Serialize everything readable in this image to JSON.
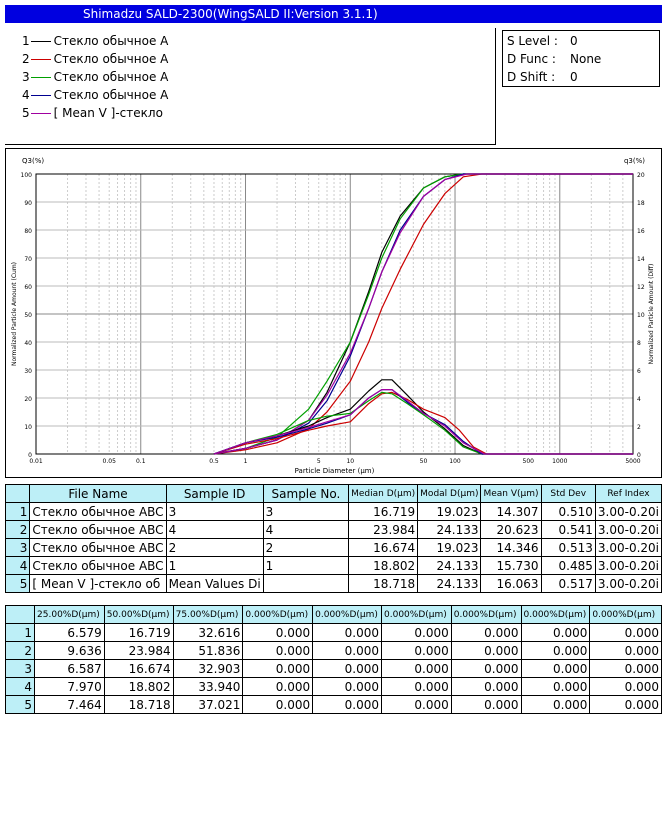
{
  "window": {
    "title": "Shimadzu SALD-2300(WingSALD II:Version 3.1.1)"
  },
  "legend": [
    {
      "num": "1",
      "label": "Стекло обычное А",
      "color": "#000000"
    },
    {
      "num": "2",
      "label": "Стекло обычное А",
      "color": "#cc0000"
    },
    {
      "num": "3",
      "label": "Стекло обычное А",
      "color": "#00a000"
    },
    {
      "num": "4",
      "label": "Стекло обычное А",
      "color": "#000090"
    },
    {
      "num": "5",
      "label": "[ Mean V ]-стекло",
      "color": "#a000a0"
    }
  ],
  "params": {
    "s_level_label": "S Level :",
    "s_level": "0",
    "d_func_label": "D Func :",
    "d_func": "None",
    "d_shift_label": "D Shift :",
    "d_shift": "0"
  },
  "chart_data": {
    "type": "line",
    "xlabel": "Particle Diameter (µm)",
    "ylabel_left": "Normalized Particle Amount (Cum)",
    "ylabel_right": "Normalized Particle Amount (Diff)",
    "y_left_title": "Q3(%)",
    "y_right_title": "q3(%)",
    "xscale": "log",
    "xlim": [
      0.01,
      5000
    ],
    "ylim_left": [
      0,
      100
    ],
    "ylim_right": [
      0,
      20
    ],
    "x_ticks": [
      "0.01",
      "0.05",
      "0.1",
      "0.5",
      "1",
      "5",
      "10",
      "50",
      "100",
      "500",
      "1000",
      "5000"
    ],
    "y_left_ticks": [
      "0",
      "10",
      "20",
      "30",
      "40",
      "50",
      "60",
      "70",
      "80",
      "90",
      "100"
    ],
    "y_right_ticks": [
      "0",
      "2",
      "4",
      "6",
      "8",
      "10",
      "12",
      "14",
      "16",
      "18",
      "20"
    ],
    "grid": true,
    "cumulative": [
      {
        "name": "1",
        "color": "#000000",
        "points": [
          [
            0.5,
            0
          ],
          [
            1,
            2
          ],
          [
            2,
            5
          ],
          [
            4,
            12
          ],
          [
            6,
            22
          ],
          [
            10,
            40
          ],
          [
            15,
            58
          ],
          [
            20,
            72
          ],
          [
            30,
            85
          ],
          [
            50,
            95
          ],
          [
            80,
            99
          ],
          [
            120,
            100
          ],
          [
            5000,
            100
          ]
        ]
      },
      {
        "name": "2",
        "color": "#cc0000",
        "points": [
          [
            0.5,
            0
          ],
          [
            1,
            1.5
          ],
          [
            2,
            4
          ],
          [
            4,
            9
          ],
          [
            6,
            15
          ],
          [
            10,
            26
          ],
          [
            15,
            40
          ],
          [
            20,
            52
          ],
          [
            30,
            66
          ],
          [
            50,
            82
          ],
          [
            80,
            93
          ],
          [
            120,
            99
          ],
          [
            180,
            100
          ],
          [
            5000,
            100
          ]
        ]
      },
      {
        "name": "3",
        "color": "#00a000",
        "points": [
          [
            0.5,
            0
          ],
          [
            1,
            2
          ],
          [
            2,
            6
          ],
          [
            4,
            16
          ],
          [
            6,
            26
          ],
          [
            10,
            40
          ],
          [
            15,
            57
          ],
          [
            20,
            70
          ],
          [
            30,
            84
          ],
          [
            50,
            95
          ],
          [
            80,
            99
          ],
          [
            120,
            100
          ],
          [
            5000,
            100
          ]
        ]
      },
      {
        "name": "4",
        "color": "#000090",
        "points": [
          [
            0.5,
            0
          ],
          [
            1,
            2
          ],
          [
            2,
            5
          ],
          [
            4,
            11
          ],
          [
            6,
            19
          ],
          [
            10,
            35
          ],
          [
            15,
            52
          ],
          [
            20,
            65
          ],
          [
            30,
            80
          ],
          [
            50,
            92
          ],
          [
            80,
            98
          ],
          [
            120,
            100
          ],
          [
            5000,
            100
          ]
        ]
      },
      {
        "name": "5",
        "color": "#a000a0",
        "points": [
          [
            0.5,
            0
          ],
          [
            1,
            2
          ],
          [
            2,
            5
          ],
          [
            4,
            12
          ],
          [
            6,
            21
          ],
          [
            10,
            36
          ],
          [
            15,
            52
          ],
          [
            20,
            65
          ],
          [
            30,
            79
          ],
          [
            50,
            92
          ],
          [
            80,
            98
          ],
          [
            130,
            100
          ],
          [
            5000,
            100
          ]
        ]
      }
    ],
    "differential": [
      {
        "name": "1",
        "color": "#000000",
        "points": [
          [
            0.5,
            0
          ],
          [
            1,
            0.8
          ],
          [
            2,
            1.3
          ],
          [
            4,
            2
          ],
          [
            6,
            2.6
          ],
          [
            10,
            3.2
          ],
          [
            15,
            4.5
          ],
          [
            20,
            5.3
          ],
          [
            25,
            5.3
          ],
          [
            35,
            4.2
          ],
          [
            50,
            3
          ],
          [
            80,
            1.8
          ],
          [
            120,
            0.6
          ],
          [
            180,
            0
          ],
          [
            5000,
            0
          ]
        ]
      },
      {
        "name": "2",
        "color": "#cc0000",
        "points": [
          [
            0.5,
            0
          ],
          [
            1,
            0.7
          ],
          [
            2,
            1.1
          ],
          [
            4,
            1.7
          ],
          [
            6,
            2
          ],
          [
            10,
            2.3
          ],
          [
            15,
            3.6
          ],
          [
            20,
            4.3
          ],
          [
            25,
            4.4
          ],
          [
            35,
            3.9
          ],
          [
            50,
            3.2
          ],
          [
            80,
            2.6
          ],
          [
            110,
            1.7
          ],
          [
            150,
            0.5
          ],
          [
            200,
            0
          ],
          [
            5000,
            0
          ]
        ]
      },
      {
        "name": "3",
        "color": "#00a000",
        "points": [
          [
            0.5,
            0
          ],
          [
            1,
            0.8
          ],
          [
            2,
            1.4
          ],
          [
            4,
            2.4
          ],
          [
            6,
            2.7
          ],
          [
            10,
            2.9
          ],
          [
            15,
            3.8
          ],
          [
            20,
            4.4
          ],
          [
            25,
            4.3
          ],
          [
            35,
            3.6
          ],
          [
            50,
            2.8
          ],
          [
            80,
            1.7
          ],
          [
            120,
            0.5
          ],
          [
            180,
            0
          ],
          [
            5000,
            0
          ]
        ]
      },
      {
        "name": "4",
        "color": "#000090",
        "points": [
          [
            0.5,
            0
          ],
          [
            1,
            0.8
          ],
          [
            2,
            1.2
          ],
          [
            4,
            1.8
          ],
          [
            6,
            2.2
          ],
          [
            10,
            2.8
          ],
          [
            15,
            4
          ],
          [
            20,
            4.6
          ],
          [
            25,
            4.6
          ],
          [
            35,
            3.7
          ],
          [
            50,
            2.9
          ],
          [
            80,
            2.1
          ],
          [
            120,
            0.9
          ],
          [
            180,
            0
          ],
          [
            5000,
            0
          ]
        ]
      },
      {
        "name": "5",
        "color": "#a000a0",
        "points": [
          [
            0.5,
            0
          ],
          [
            1,
            0.8
          ],
          [
            2,
            1.3
          ],
          [
            4,
            1.9
          ],
          [
            6,
            2.3
          ],
          [
            10,
            2.8
          ],
          [
            15,
            4
          ],
          [
            20,
            4.6
          ],
          [
            25,
            4.6
          ],
          [
            35,
            3.8
          ],
          [
            50,
            2.9
          ],
          [
            80,
            2
          ],
          [
            120,
            0.8
          ],
          [
            190,
            0
          ],
          [
            5000,
            0
          ]
        ]
      }
    ]
  },
  "table1": {
    "headers": [
      "File Name",
      "Sample ID",
      "Sample No.",
      "Median D(µm)",
      "Modal D(µm)",
      "Mean V(µm)",
      "Std Dev",
      "Ref Index"
    ],
    "rows": [
      [
        "1",
        "Стекло обычное ABC",
        "3",
        "3",
        "16.719",
        "19.023",
        "14.307",
        "0.510",
        "3.00-0.20i"
      ],
      [
        "2",
        "Стекло обычное ABC",
        "4",
        "4",
        "23.984",
        "24.133",
        "20.623",
        "0.541",
        "3.00-0.20i"
      ],
      [
        "3",
        "Стекло обычное ABC",
        "2",
        "2",
        "16.674",
        "19.023",
        "14.346",
        "0.513",
        "3.00-0.20i"
      ],
      [
        "4",
        "Стекло обычное ABC",
        "1",
        "1",
        "18.802",
        "24.133",
        "15.730",
        "0.485",
        "3.00-0.20i"
      ],
      [
        "5",
        "[ Mean V ]-стекло об",
        "Mean Values Di",
        "",
        "18.718",
        "24.133",
        "16.063",
        "0.517",
        "3.00-0.20i"
      ]
    ]
  },
  "table2": {
    "headers": [
      "25.00%D(µm)",
      "50.00%D(µm)",
      "75.00%D(µm)",
      "0.000%D(µm)",
      "0.000%D(µm)",
      "0.000%D(µm)",
      "0.000%D(µm)",
      "0.000%D(µm)",
      "0.000%D(µm)"
    ],
    "rows": [
      [
        "1",
        "6.579",
        "16.719",
        "32.616",
        "0.000",
        "0.000",
        "0.000",
        "0.000",
        "0.000",
        "0.000"
      ],
      [
        "2",
        "9.636",
        "23.984",
        "51.836",
        "0.000",
        "0.000",
        "0.000",
        "0.000",
        "0.000",
        "0.000"
      ],
      [
        "3",
        "6.587",
        "16.674",
        "32.903",
        "0.000",
        "0.000",
        "0.000",
        "0.000",
        "0.000",
        "0.000"
      ],
      [
        "4",
        "7.970",
        "18.802",
        "33.940",
        "0.000",
        "0.000",
        "0.000",
        "0.000",
        "0.000",
        "0.000"
      ],
      [
        "5",
        "7.464",
        "18.718",
        "37.021",
        "0.000",
        "0.000",
        "0.000",
        "0.000",
        "0.000",
        "0.000"
      ]
    ]
  }
}
